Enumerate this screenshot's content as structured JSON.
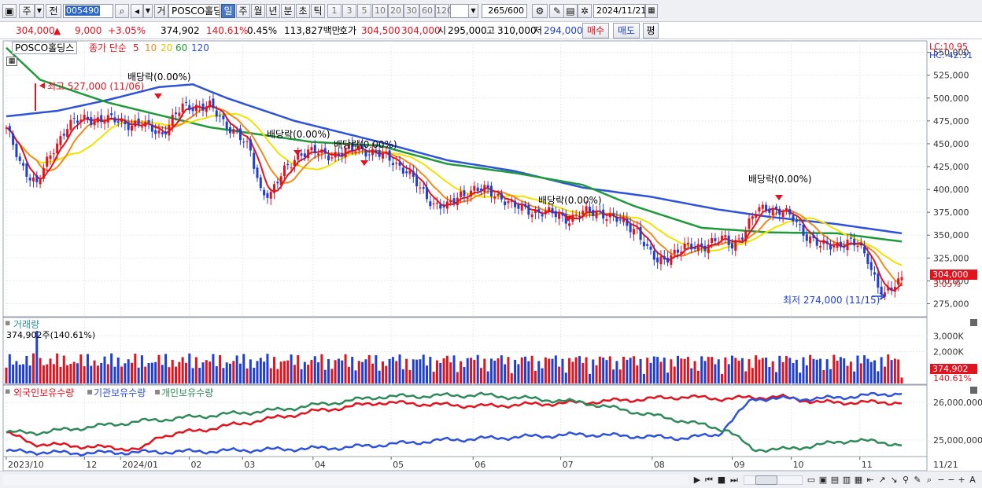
{
  "toolbar": {
    "market_type": "주",
    "market_prefix": "전",
    "stock_code": "005490",
    "prefix_label": "거",
    "stock_name": "POSCO홀딩스",
    "period_tabs": [
      "일",
      "주",
      "월",
      "년",
      "분",
      "초",
      "틱"
    ],
    "active_period": "일",
    "interval_buttons": [
      "1",
      "3",
      "5",
      "10",
      "20",
      "30",
      "60",
      "120"
    ],
    "view_count": "265",
    "view_total": "/600",
    "date": "2024/11/21"
  },
  "quote": {
    "price": "304,000",
    "change_arrow": "▲",
    "change": "9,000",
    "change_pct": "+3.05%",
    "volume": "374,902",
    "volume_ratio": "140.61%",
    "turnover": "0.45%",
    "trade_value": "113,827백만",
    "bid_label": "호가",
    "bid": "304,500",
    "ask": "304,000",
    "open_label": "시",
    "open": "295,000",
    "high_label": "고",
    "high": "310,000",
    "low_label": "저",
    "low": "294,000",
    "buy_label": "매수",
    "sell_label": "매도",
    "eval_label": "평"
  },
  "legend": {
    "stock": "POSCO홀딩스",
    "price_type": "종가 단순",
    "ma_labels": [
      "5",
      "10",
      "20",
      "60",
      "120"
    ],
    "lc": "LC:10.95",
    "hc": "HC:-42.31",
    "volume_title": "거래량",
    "volume_value": "374,902주(140.61%)",
    "holding_titles": [
      "외국인보유수량",
      "기관보유수량",
      "개인보유수량"
    ]
  },
  "annotations": {
    "high": "최고 527,000 (11/06)",
    "low": "최저 274,000 (11/15)",
    "dividend": "배당락(0.00%)",
    "price_tag": "304,000",
    "pct_tag": "3.05%",
    "vol_tag": "374,902",
    "vol_pct_tag": "140.61%"
  },
  "colors": {
    "up": "#e0141e",
    "down": "#1e3fd1",
    "ma5": "#e0141e",
    "ma10": "#f08a1c",
    "ma20": "#f2e200",
    "ma60": "#1f9a3a",
    "ma120": "#2e52d8",
    "foreign": "#e0141e",
    "institution": "#2e52d8",
    "individual": "#2e8a5a"
  },
  "chart_data": [
    {
      "type": "candlestick",
      "title": "POSCO홀딩스 일봉",
      "ylim": [
        262500,
        560000
      ],
      "y_ticks": [
        275000,
        300000,
        325000,
        350000,
        375000,
        400000,
        425000,
        450000,
        475000,
        500000,
        525000,
        550000
      ],
      "y_tick_labels": [
        "275,000",
        "300,000",
        "325,000",
        "350,000",
        "375,000",
        "400,000",
        "425,000",
        "450,000",
        "475,000",
        "500,000",
        "525,000",
        "550,000"
      ],
      "x_labels": [
        "2023/10",
        "12",
        "2024/01",
        "02",
        "03",
        "04",
        "05",
        "06",
        "07",
        "08",
        "09",
        "10",
        "11"
      ],
      "x_end_label": "11/21",
      "close": [
        [
          0,
          465000
        ],
        [
          4,
          430000
        ],
        [
          9,
          405000
        ],
        [
          14,
          445000
        ],
        [
          18,
          470000
        ],
        [
          24,
          478000
        ],
        [
          32,
          475000
        ],
        [
          40,
          470000
        ],
        [
          46,
          462000
        ],
        [
          52,
          490000
        ],
        [
          56,
          492000
        ],
        [
          60,
          490000
        ],
        [
          64,
          474000
        ],
        [
          68,
          462000
        ],
        [
          72,
          440000
        ],
        [
          75,
          400000
        ],
        [
          78,
          395000
        ],
        [
          82,
          420000
        ],
        [
          86,
          440000
        ],
        [
          92,
          440000
        ],
        [
          98,
          438000
        ],
        [
          104,
          446000
        ],
        [
          108,
          440000
        ],
        [
          114,
          432000
        ],
        [
          118,
          420000
        ],
        [
          122,
          400000
        ],
        [
          126,
          385000
        ],
        [
          130,
          380000
        ],
        [
          134,
          395000
        ],
        [
          138,
          400000
        ],
        [
          142,
          398000
        ],
        [
          146,
          392000
        ],
        [
          150,
          380000
        ],
        [
          154,
          378000
        ],
        [
          158,
          375000
        ],
        [
          162,
          372000
        ],
        [
          166,
          368000
        ],
        [
          170,
          374000
        ],
        [
          175,
          376000
        ],
        [
          178,
          370000
        ],
        [
          182,
          362000
        ],
        [
          186,
          357000
        ],
        [
          189,
          333000
        ],
        [
          192,
          320000
        ],
        [
          196,
          330000
        ],
        [
          200,
          335000
        ],
        [
          204,
          338000
        ],
        [
          208,
          342000
        ],
        [
          212,
          345000
        ],
        [
          214,
          340000
        ],
        [
          218,
          355000
        ],
        [
          221,
          375000
        ],
        [
          224,
          382000
        ],
        [
          228,
          376000
        ],
        [
          232,
          368000
        ],
        [
          236,
          350000
        ],
        [
          240,
          337000
        ],
        [
          244,
          340000
        ],
        [
          248,
          342000
        ],
        [
          251,
          338000
        ],
        [
          254,
          325000
        ],
        [
          257,
          295000
        ],
        [
          259,
          283000
        ],
        [
          261,
          290000
        ],
        [
          262,
          295000
        ],
        [
          264,
          304000
        ]
      ],
      "ma_series": [
        {
          "name": "5",
          "color": "#e0141e"
        },
        {
          "name": "10",
          "color": "#f08a1c"
        },
        {
          "name": "20",
          "color": "#f2e200"
        },
        {
          "name": "60",
          "color": "#1f9a3a",
          "values": [
            [
              0,
              555000
            ],
            [
              10,
              520000
            ],
            [
              30,
              495000
            ],
            [
              60,
              468000
            ],
            [
              90,
              452000
            ],
            [
              110,
              448000
            ],
            [
              130,
              428000
            ],
            [
              150,
              418000
            ],
            [
              170,
              405000
            ],
            [
              185,
              382000
            ],
            [
              205,
              358000
            ],
            [
              225,
              353000
            ],
            [
              245,
              352000
            ],
            [
              264,
              343000
            ]
          ]
        },
        {
          "name": "120",
          "color": "#2e52d8",
          "values": [
            [
              0,
              480000
            ],
            [
              15,
              486000
            ],
            [
              30,
              498000
            ],
            [
              45,
              512000
            ],
            [
              55,
              515000
            ],
            [
              65,
              500000
            ],
            [
              85,
              475000
            ],
            [
              110,
              452000
            ],
            [
              130,
              432000
            ],
            [
              150,
              420000
            ],
            [
              170,
              402000
            ],
            [
              190,
              392000
            ],
            [
              210,
              378000
            ],
            [
              225,
              370000
            ],
            [
              245,
              362000
            ],
            [
              264,
              352000
            ]
          ]
        }
      ]
    },
    {
      "type": "bar",
      "title": "거래량",
      "y_ticks": [
        2000000,
        3000000
      ],
      "y_tick_labels": [
        "2,000K",
        "3,000K"
      ],
      "latest": 374902
    },
    {
      "type": "line",
      "title": "외국인보유수량 / 기관보유수량 / 개인보유수량",
      "y_ticks": [
        25000000,
        26000000
      ],
      "y_tick_labels": [
        "25,000,000",
        "26,000,000"
      ]
    }
  ]
}
